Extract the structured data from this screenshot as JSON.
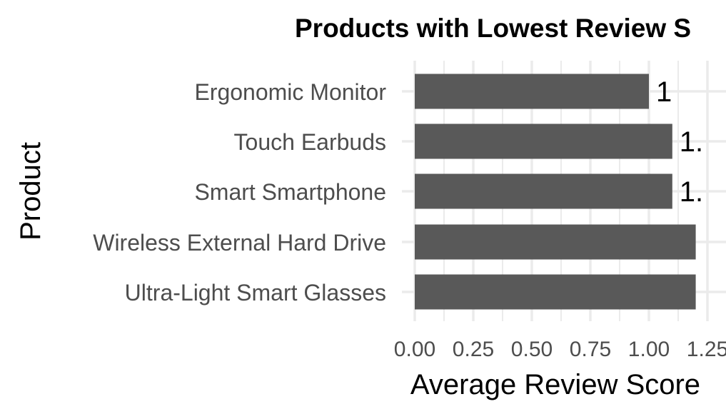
{
  "chart_data": {
    "type": "bar",
    "orientation": "horizontal",
    "title": "Products with Lowest Review S",
    "xlabel": "Average Review Score",
    "ylabel": "Product",
    "categories": [
      "Ergonomic Monitor",
      "Touch Earbuds",
      "Smart Smartphone",
      "Wireless External Hard Drive",
      "Ultra-Light Smart Glasses"
    ],
    "values": [
      1.0,
      1.1,
      1.1,
      1.2,
      1.2
    ],
    "data_labels": [
      "1",
      "1.",
      "1.",
      "",
      ""
    ],
    "xlim": [
      0,
      1.25
    ],
    "x_ticks": [
      0,
      0.25,
      0.5,
      0.75,
      1.0,
      1.25
    ],
    "x_tick_labels": [
      "0.00",
      "0.25",
      "0.50",
      "0.75",
      "1.00",
      "1.25"
    ],
    "grid": true,
    "legend": "none",
    "bar_color": "#595959",
    "grid_color": "#ebebeb"
  }
}
